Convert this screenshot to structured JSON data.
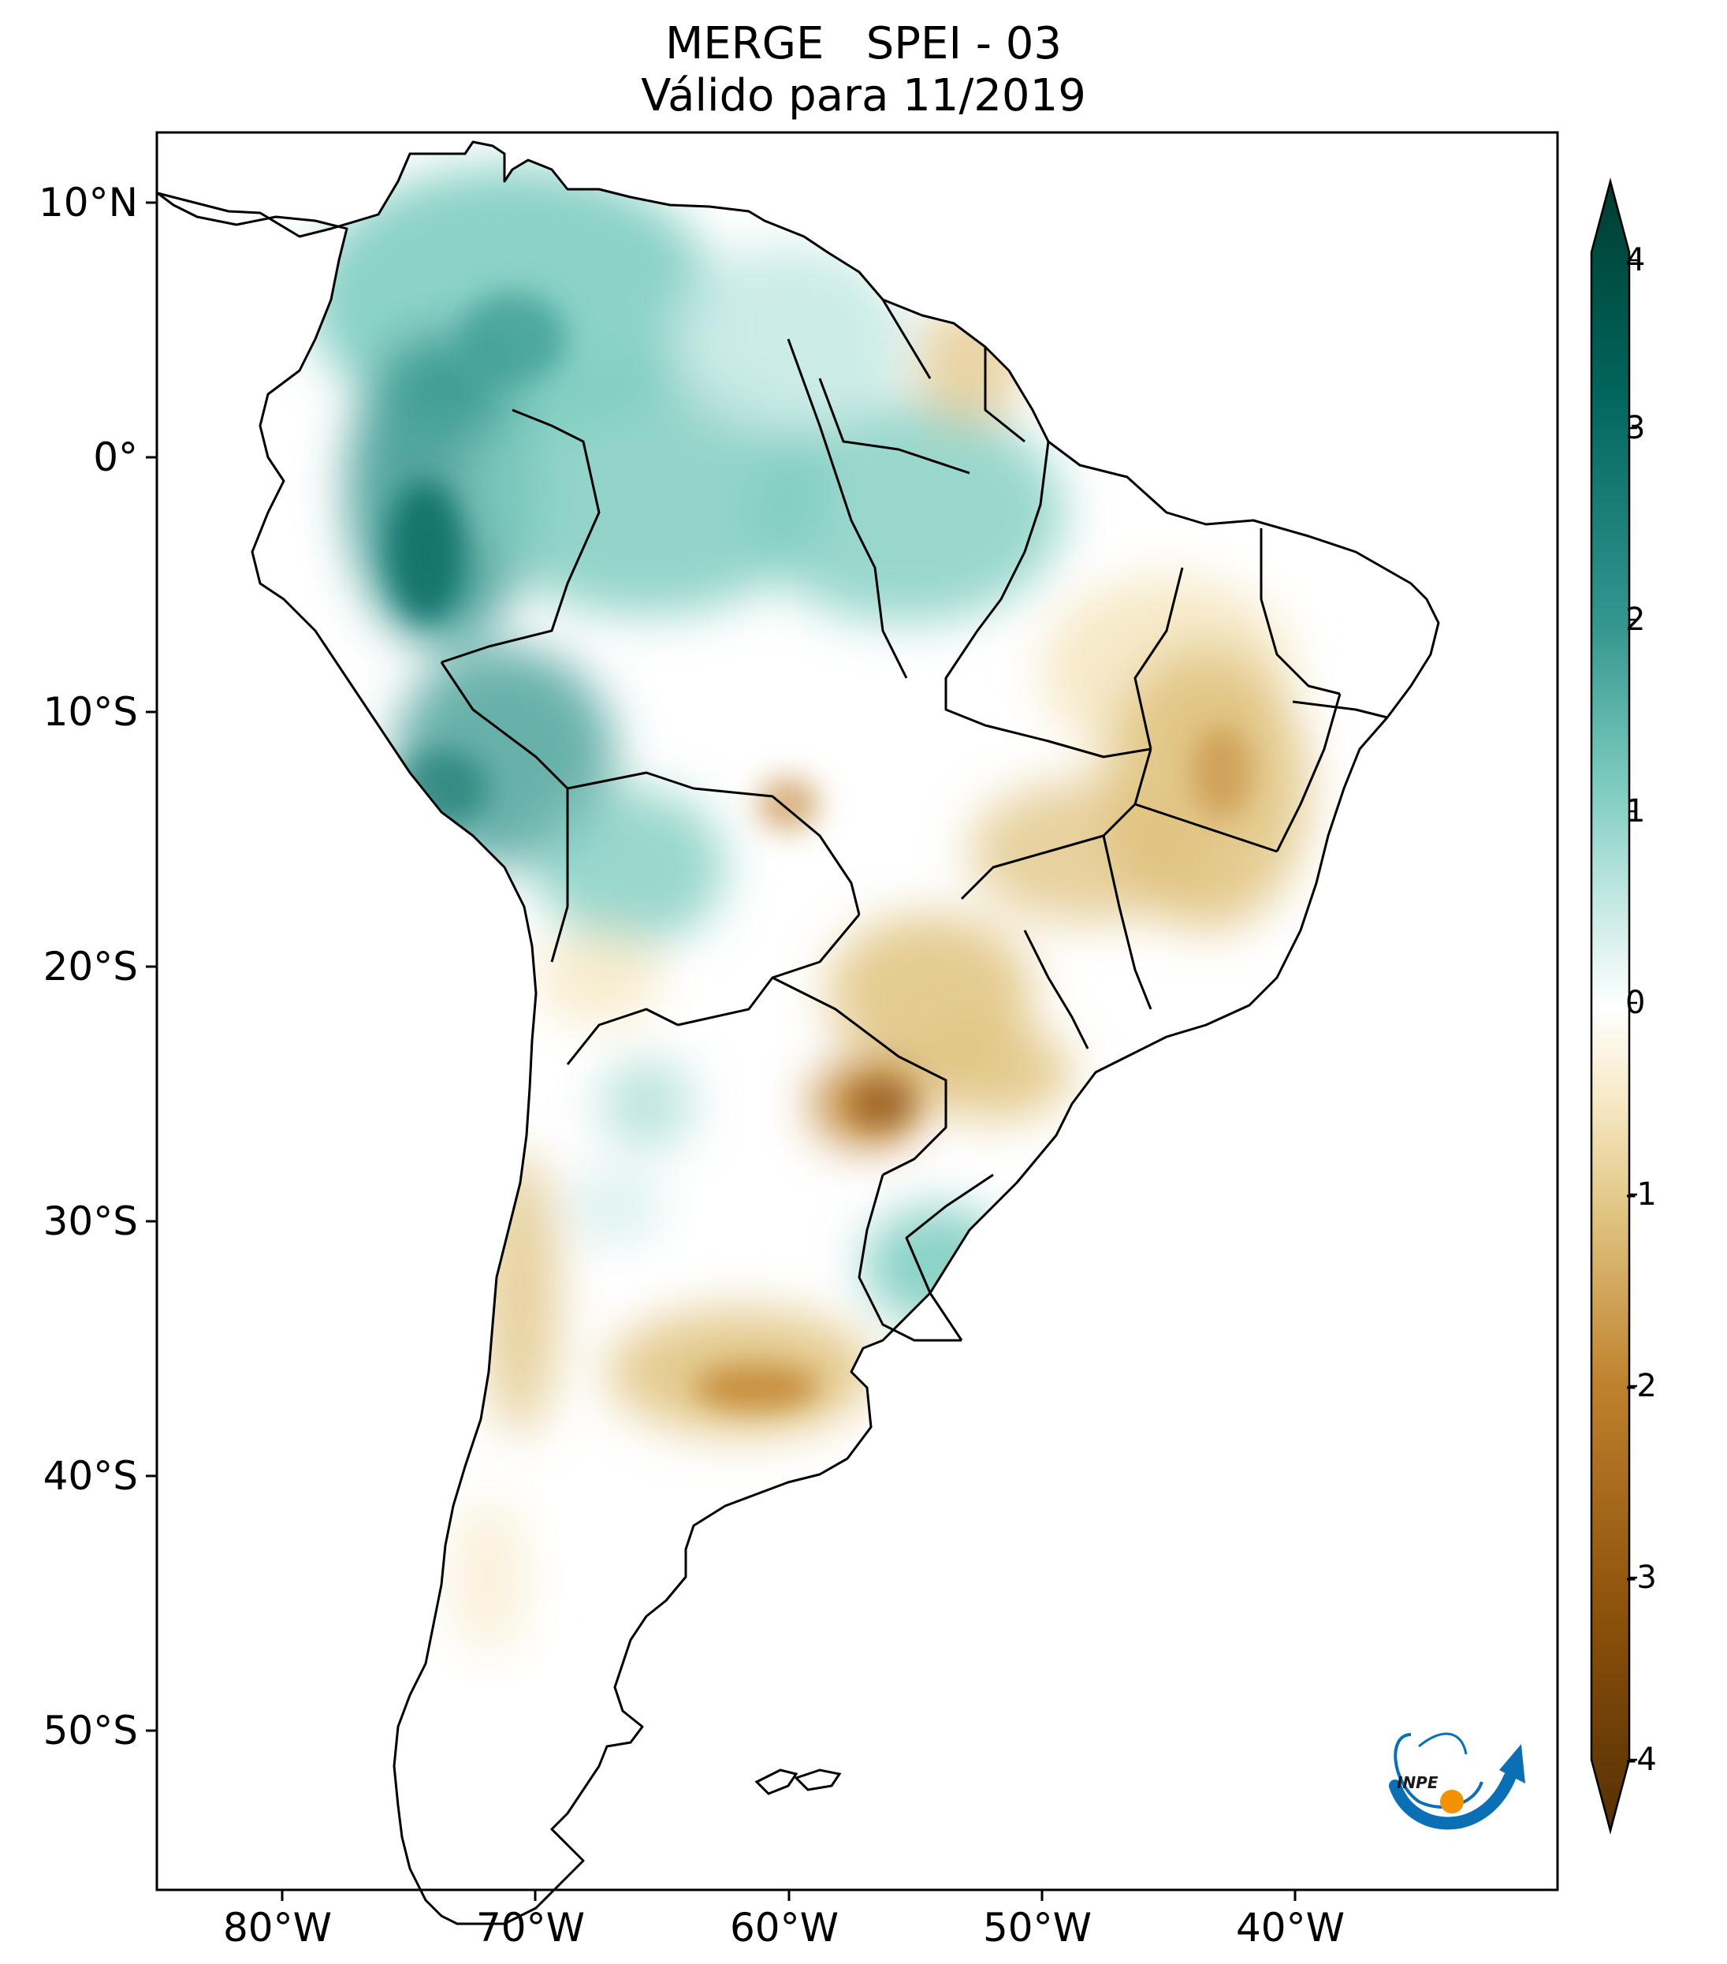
{
  "title_line1": "MERGE   SPEI - 03",
  "title_line2": "Válido para 11/2019",
  "map": {
    "variable": "SPEI - 03",
    "source": "MERGE",
    "lon_ticks": [
      "80°W",
      "70°W",
      "60°W",
      "50°W",
      "40°W"
    ],
    "lat_ticks": [
      "10°N",
      "0°",
      "10°S",
      "20°S",
      "30°S",
      "40°S",
      "50°S"
    ],
    "extent": {
      "lon_min": -85,
      "lon_max": -30,
      "lat_min": -56,
      "lat_max": 13
    }
  },
  "colorbar": {
    "ticks": [
      "4",
      "3",
      "2",
      "1",
      "0",
      "-1",
      "-2",
      "-3",
      "-4"
    ],
    "range": [
      -4,
      4
    ],
    "extend": "both",
    "colormap": "BrBG",
    "colors": [
      "#543005",
      "#8c510a",
      "#bf812d",
      "#dfc27d",
      "#f6e8c3",
      "#ffffff",
      "#c7eae5",
      "#80cdc1",
      "#35978f",
      "#01665e",
      "#003c30"
    ]
  },
  "logo": {
    "text": "INPE",
    "color_blue": "#0a6fb4",
    "color_orange": "#f39200"
  }
}
